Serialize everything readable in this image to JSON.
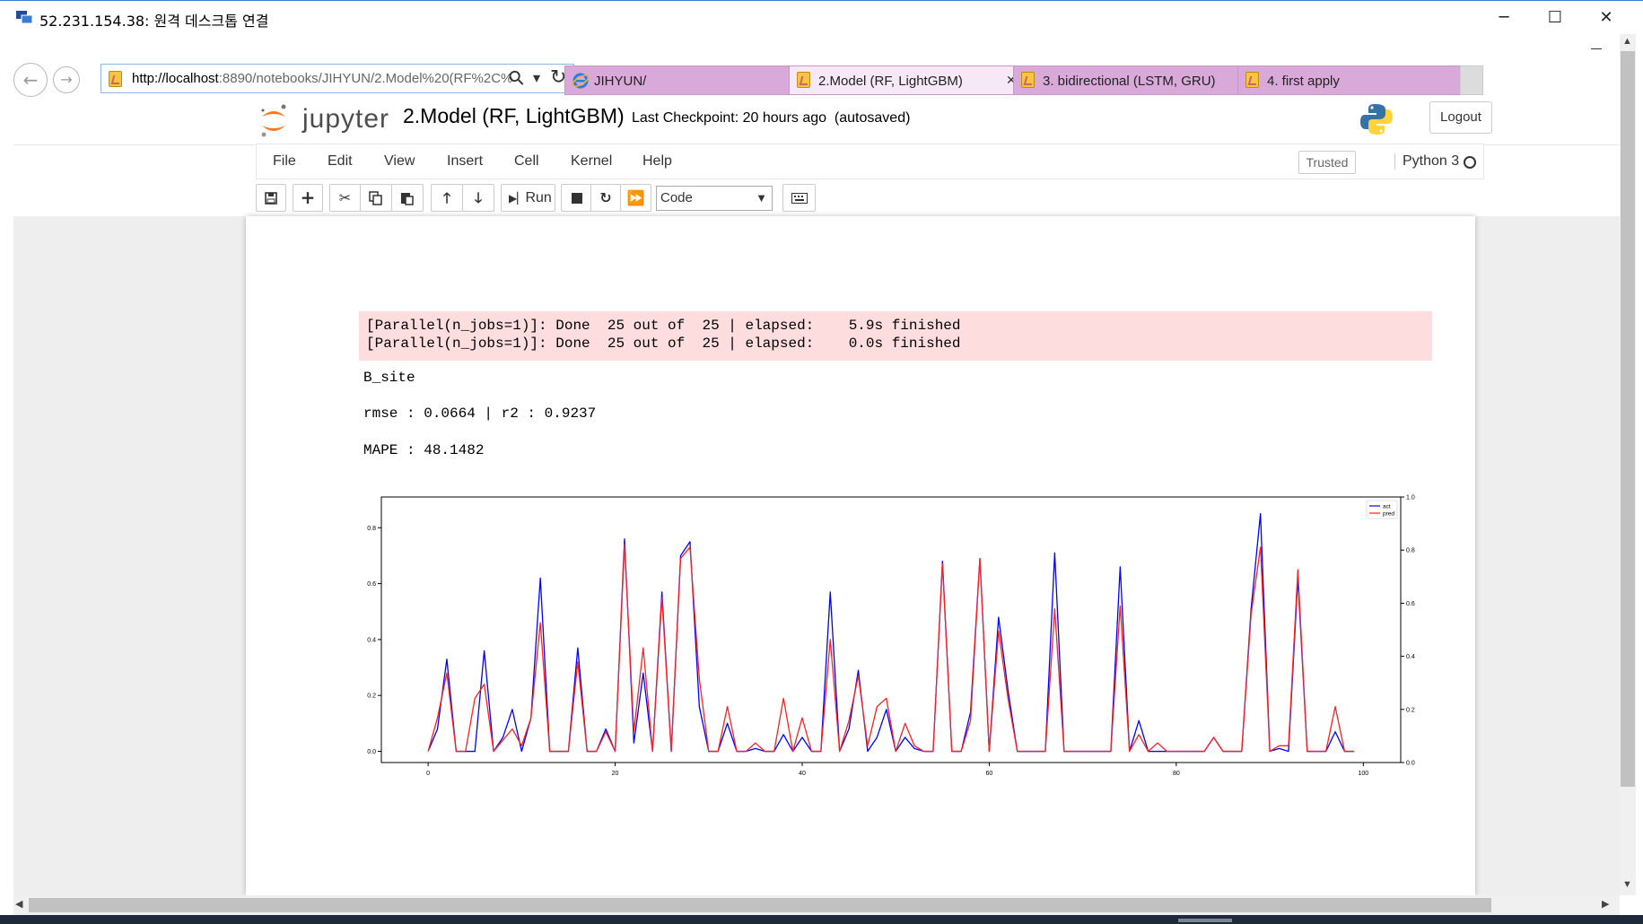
{
  "window": {
    "title": "52.231.154.38: 원격 데스크톱 연결",
    "minimize": "─",
    "maximize": "☐",
    "close": "✕"
  },
  "browser": {
    "back": "←",
    "forward": "→",
    "url_host": "http://localhost",
    "url_path": ":8890/notebooks/JIHYUN/2.Model%20(RF%2C%",
    "search_icon": "⚲",
    "dropdown_icon": "▾",
    "refresh_icon": "↻",
    "tabs": [
      {
        "label": "JIHYUN/",
        "active": false
      },
      {
        "label": "2.Model (RF, LightGBM)",
        "active": true,
        "close": "✕"
      },
      {
        "label": "3. bidirectional (LSTM, GRU)",
        "active": false
      },
      {
        "label": "4. first apply",
        "active": false
      }
    ]
  },
  "jupyter": {
    "logo_text": "jupyter",
    "notebook_name": "2.Model (RF, LightGBM)",
    "checkpoint": "Last Checkpoint: 20 hours ago",
    "autosave": "(autosaved)",
    "logout_label": "Logout",
    "menu": [
      "File",
      "Edit",
      "View",
      "Insert",
      "Cell",
      "Kernel",
      "Help"
    ],
    "trusted_label": "Trusted",
    "kernel_name": "Python 3",
    "toolbar": {
      "run_label": "Run",
      "cell_type": "Code"
    }
  },
  "output": {
    "stderr_lines": [
      "[Parallel(n_jobs=1)]: Done  25 out of  25 | elapsed:    5.9s finished",
      "[Parallel(n_jobs=1)]: Done  25 out of  25 | elapsed:    0.0s finished"
    ],
    "site": "B_site",
    "metrics": "rmse : 0.0664 | r2 : 0.9237",
    "mape": "MAPE : 48.1482"
  },
  "chart_data": {
    "type": "line",
    "title": "",
    "xlabel": "",
    "ylabel": "",
    "xlim": [
      -5,
      104
    ],
    "ylim": [
      -0.04,
      0.91
    ],
    "y2lim": [
      0,
      1.0
    ],
    "xticks": [
      0,
      20,
      40,
      60,
      80,
      100
    ],
    "yticks": [
      0.0,
      0.2,
      0.4,
      0.6,
      0.8
    ],
    "yticks_right": [
      0.0,
      0.2,
      0.4,
      0.6,
      0.8,
      1.0
    ],
    "legend": "top-right",
    "grid": false,
    "x": [
      0,
      1,
      2,
      3,
      4,
      5,
      6,
      7,
      8,
      9,
      10,
      11,
      12,
      13,
      14,
      15,
      16,
      17,
      18,
      19,
      20,
      21,
      22,
      23,
      24,
      25,
      26,
      27,
      28,
      29,
      30,
      31,
      32,
      33,
      34,
      35,
      36,
      37,
      38,
      39,
      40,
      41,
      42,
      43,
      44,
      45,
      46,
      47,
      48,
      49,
      50,
      51,
      52,
      53,
      54,
      55,
      56,
      57,
      58,
      59,
      60,
      61,
      62,
      63,
      64,
      65,
      66,
      67,
      68,
      69,
      70,
      71,
      72,
      73,
      74,
      75,
      76,
      77,
      78,
      79,
      80,
      81,
      82,
      83,
      84,
      85,
      86,
      87,
      88,
      89,
      90,
      91,
      92,
      93,
      94,
      95,
      96,
      97,
      98,
      99
    ],
    "series": [
      {
        "name": "act",
        "color": "#0000ff",
        "values": [
          0.0,
          0.08,
          0.33,
          0.0,
          0.0,
          0.0,
          0.36,
          0.0,
          0.05,
          0.15,
          0.0,
          0.12,
          0.62,
          0.0,
          0.0,
          0.0,
          0.37,
          0.0,
          0.0,
          0.08,
          0.0,
          0.76,
          0.03,
          0.28,
          0.0,
          0.57,
          0.0,
          0.7,
          0.75,
          0.16,
          0.0,
          0.0,
          0.1,
          0.0,
          0.0,
          0.01,
          0.0,
          0.0,
          0.06,
          0.0,
          0.05,
          0.0,
          0.0,
          0.57,
          0.0,
          0.08,
          0.29,
          0.0,
          0.05,
          0.15,
          0.0,
          0.05,
          0.01,
          0.0,
          0.0,
          0.68,
          0.0,
          0.0,
          0.14,
          0.69,
          0.0,
          0.48,
          0.22,
          0.0,
          0.0,
          0.0,
          0.0,
          0.71,
          0.0,
          0.0,
          0.0,
          0.0,
          0.0,
          0.0,
          0.66,
          0.0,
          0.11,
          0.0,
          0.0,
          0.0,
          0.0,
          0.0,
          0.0,
          0.0,
          0.05,
          0.0,
          0.0,
          0.0,
          0.51,
          0.85,
          0.0,
          0.01,
          0.0,
          0.62,
          0.0,
          0.0,
          0.0,
          0.07,
          0.0,
          0.0
        ]
      },
      {
        "name": "pred",
        "color": "#ff2222",
        "values": [
          0.0,
          0.12,
          0.28,
          0.0,
          0.0,
          0.19,
          0.24,
          0.0,
          0.04,
          0.08,
          0.02,
          0.12,
          0.46,
          0.0,
          0.0,
          0.0,
          0.32,
          0.0,
          0.0,
          0.07,
          0.0,
          0.74,
          0.07,
          0.37,
          0.0,
          0.55,
          0.0,
          0.69,
          0.73,
          0.26,
          0.0,
          0.0,
          0.16,
          0.0,
          0.0,
          0.03,
          0.0,
          0.0,
          0.19,
          0.0,
          0.12,
          0.0,
          0.0,
          0.4,
          0.0,
          0.11,
          0.27,
          0.02,
          0.16,
          0.19,
          0.0,
          0.1,
          0.02,
          0.0,
          0.0,
          0.67,
          0.0,
          0.0,
          0.11,
          0.69,
          0.0,
          0.43,
          0.19,
          0.0,
          0.0,
          0.0,
          0.0,
          0.51,
          0.0,
          0.0,
          0.0,
          0.0,
          0.0,
          0.0,
          0.52,
          0.0,
          0.06,
          0.0,
          0.03,
          0.0,
          0.0,
          0.0,
          0.0,
          0.0,
          0.05,
          0.0,
          0.0,
          0.0,
          0.49,
          0.73,
          0.0,
          0.02,
          0.02,
          0.65,
          0.0,
          0.0,
          0.0,
          0.16,
          0.0,
          0.0
        ]
      }
    ]
  }
}
